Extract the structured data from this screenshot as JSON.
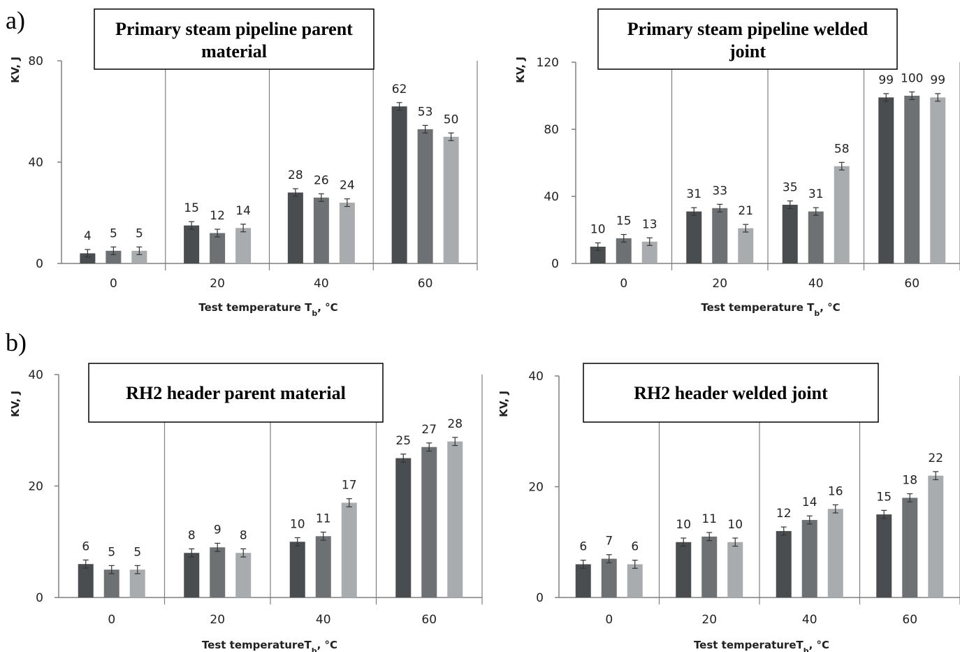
{
  "panel_labels": [
    "a)",
    "b)"
  ],
  "colors": {
    "series": [
      "#4a4d50",
      "#6e7173",
      "#a9acae"
    ],
    "axis": "#7f7f7f",
    "error_bar": "#333333"
  },
  "chart_data": [
    {
      "type": "bar",
      "title": "Primary steam pipeline parent material",
      "title_lines": [
        "Primary steam pipeline parent",
        "material"
      ],
      "xlabel": "Test temperature T",
      "xlabel_sub": "b",
      "xlabel_unit": ", °C",
      "ylabel": "KV, J",
      "ylim": [
        0,
        80
      ],
      "yticks": [
        "0",
        "40",
        "80"
      ],
      "categories": [
        "0",
        "20",
        "40",
        "60"
      ],
      "series": [
        {
          "values": [
            4,
            15,
            28,
            62
          ],
          "labels": [
            "4",
            "15",
            "28",
            "62"
          ]
        },
        {
          "values": [
            5,
            12,
            26,
            53
          ],
          "labels": [
            "5",
            "12",
            "26",
            "53"
          ]
        },
        {
          "values": [
            5,
            14,
            24,
            50
          ],
          "labels": [
            "5",
            "14",
            "24",
            "50"
          ]
        }
      ],
      "error_bars": true,
      "grid": "vertical separators"
    },
    {
      "type": "bar",
      "title": "Primary steam pipeline welded joint",
      "title_lines": [
        "Primary steam pipeline welded",
        "joint"
      ],
      "xlabel": "Test temperature T",
      "xlabel_sub": "b",
      "xlabel_unit": ", °C",
      "ylabel": "KV, J",
      "ylim": [
        0,
        120
      ],
      "yticks": [
        "0",
        "40",
        "80",
        "120"
      ],
      "categories": [
        "0",
        "20",
        "40",
        "60"
      ],
      "series": [
        {
          "values": [
            10,
            31,
            35,
            99
          ],
          "labels": [
            "10",
            "31",
            "35",
            "99"
          ]
        },
        {
          "values": [
            15,
            33,
            31,
            100
          ],
          "labels": [
            "15",
            "33",
            "31",
            "100"
          ]
        },
        {
          "values": [
            13,
            21,
            58,
            99
          ],
          "labels": [
            "13",
            "21",
            "58",
            "99"
          ]
        }
      ],
      "error_bars": true,
      "grid": "vertical separators"
    },
    {
      "type": "bar",
      "title": "RH2 header parent material",
      "title_lines": [
        "RH2 header parent material"
      ],
      "xlabel": "Test temperatureT",
      "xlabel_sub": "b",
      "xlabel_unit": ", °C",
      "ylabel": "KV, J",
      "ylim": [
        0,
        40
      ],
      "yticks": [
        "0",
        "20",
        "40"
      ],
      "categories": [
        "0",
        "20",
        "40",
        "60"
      ],
      "series": [
        {
          "values": [
            6,
            8,
            10,
            25
          ],
          "labels": [
            "6",
            "8",
            "10",
            "25"
          ]
        },
        {
          "values": [
            5,
            9,
            11,
            27
          ],
          "labels": [
            "5",
            "9",
            "11",
            "27"
          ]
        },
        {
          "values": [
            5,
            8,
            17,
            28
          ],
          "labels": [
            "5",
            "8",
            "17",
            "28"
          ]
        }
      ],
      "error_bars": true,
      "grid": "vertical separators"
    },
    {
      "type": "bar",
      "title": "RH2 header welded joint",
      "title_lines": [
        "RH2 header welded joint"
      ],
      "xlabel": "Test temperatureT",
      "xlabel_sub": "b",
      "xlabel_unit": ", °C",
      "ylabel": "KV, J",
      "ylim": [
        0,
        40
      ],
      "yticks": [
        "0",
        "20",
        "40"
      ],
      "categories": [
        "0",
        "20",
        "40",
        "60"
      ],
      "series": [
        {
          "values": [
            6,
            10,
            12,
            15
          ],
          "labels": [
            "6",
            "10",
            "12",
            "15"
          ]
        },
        {
          "values": [
            7,
            11,
            14,
            18
          ],
          "labels": [
            "7",
            "11",
            "14",
            "18"
          ]
        },
        {
          "values": [
            6,
            10,
            16,
            22
          ],
          "labels": [
            "6",
            "10",
            "16",
            "22"
          ]
        }
      ],
      "error_bars": true,
      "grid": "vertical separators"
    }
  ]
}
